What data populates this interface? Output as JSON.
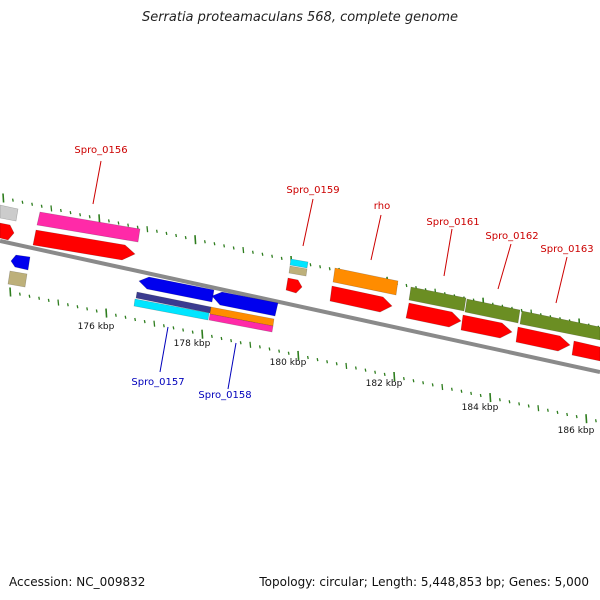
{
  "title": "Serratia proteamaculans 568, complete genome",
  "footer": {
    "accession": "Accession: NC_009832",
    "summary": "Topology: circular; Length: 5,448,853 bp; Genes: 5,000"
  },
  "colors": {
    "backbone": "#8a8a8a",
    "tick": "#2e7d1e",
    "label_forward": "#cc0000",
    "label_reverse": "#0000bb",
    "cds_red": "#ff0000",
    "blue": "#0000ee",
    "pink": "#ff2aa8",
    "orange": "#ff8c00",
    "olive": "#6b8e23",
    "cyan": "#00e5ff",
    "tan": "#bdb07a",
    "gray": "#cccccc",
    "navy": "#3b3b8f"
  },
  "scale_labels": [
    "176 kbp",
    "178 kbp",
    "180 kbp",
    "182 kbp",
    "184 kbp",
    "186 kbp"
  ],
  "gene_labels": {
    "forward": [
      "Spro_0156",
      "Spro_0159",
      "rho",
      "Spro_0161",
      "Spro_0162",
      "Spro_0163"
    ],
    "reverse": [
      "Spro_0157",
      "Spro_0158"
    ]
  }
}
